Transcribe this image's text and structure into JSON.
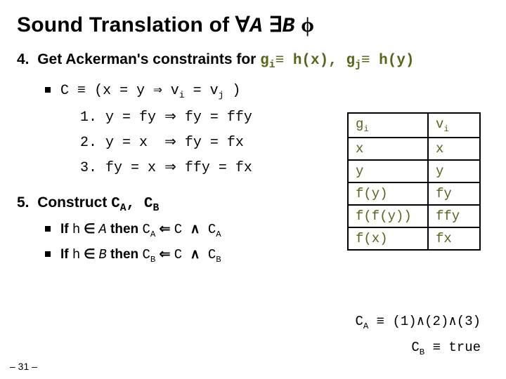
{
  "colors": {
    "text": "#000000",
    "accent": "#5a6617",
    "background": "#ffffff",
    "table_border": "#000000"
  },
  "title": {
    "prefix": "Sound Translation of ",
    "forall": "∀",
    "A": "A",
    "exists": "∃",
    "B": "B",
    "phi": "ϕ"
  },
  "step4": {
    "num": "4.",
    "text_a": "Get Ackerman's constraints for ",
    "g": "g",
    "i": "i",
    "eq1": "≡",
    "hx": "h(x)",
    "comma": ", ",
    "j": "j",
    "hy": "h(y)"
  },
  "cdef": {
    "C": "C",
    "equiv": "≡",
    "open": "(x = y ",
    "arrow": "⇒",
    "vi": " v",
    "i": "i",
    "eq": " = v",
    "j": "j",
    "close": " )"
  },
  "rules": [
    {
      "n": "1.",
      "lhs": "y = fy",
      "rhs": "fy = ffy"
    },
    {
      "n": "2.",
      "lhs": "y = x ",
      "rhs": "fy = fx"
    },
    {
      "n": "3.",
      "lhs": "fy = x",
      "rhs": "ffy = fx"
    }
  ],
  "step5": {
    "num": "5.",
    "text": "Construct ",
    "CA": "C",
    "Asub": "A",
    "comma": ", ",
    "CB": "C",
    "Bsub": "B"
  },
  "sub": [
    {
      "if": "If ",
      "h": "h",
      "in": " ∈ ",
      "set": "A",
      "then": " then ",
      "lhs_C": "C",
      "lhs_sub": "A",
      "larr": " ⇐ ",
      "rhs1": "C ",
      "and": "∧",
      "rhs2": " C",
      "rhs_sub": "A"
    },
    {
      "if": "If ",
      "h": "h",
      "in": " ∈ ",
      "set": "B",
      "then": " then ",
      "lhs_C": "C",
      "lhs_sub": "B",
      "larr": " ⇐ ",
      "rhs1": "C ",
      "and": "∧",
      "rhs2": " C",
      "rhs_sub": "B"
    }
  ],
  "table": {
    "rows": [
      [
        "g<sub>i</sub>",
        "v<sub>i</sub>"
      ],
      [
        "x",
        "x"
      ],
      [
        "y",
        "y"
      ],
      [
        "f(y)",
        "fy"
      ],
      [
        "f(f(y))",
        "ffy"
      ],
      [
        "f(x)",
        "fx"
      ]
    ]
  },
  "side": {
    "ca": {
      "C": "C",
      "sub": "A",
      "equiv": " ≡ ",
      "val": "(1)∧(2)∧(3)"
    },
    "cb": {
      "C": "C",
      "sub": "B",
      "equiv": " ≡ ",
      "val": "true"
    }
  },
  "pagenum": "– 31 –"
}
